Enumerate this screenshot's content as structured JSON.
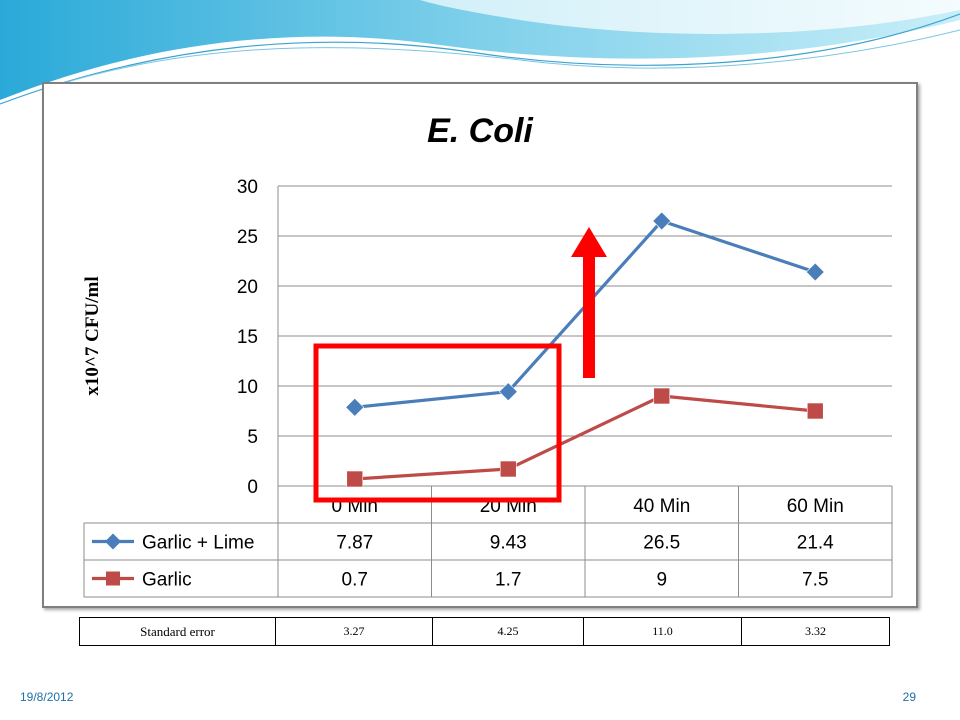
{
  "chart_data": {
    "type": "line",
    "title": "E. Coli",
    "ylabel": "x10^7 CFU/ml",
    "xlabel": "",
    "categories": [
      "0 Min",
      "20 Min",
      "40 Min",
      "60 Min"
    ],
    "ylim": [
      0,
      30
    ],
    "yticks": [
      0,
      5,
      10,
      15,
      20,
      25,
      30
    ],
    "grid": true,
    "legend": "data-table",
    "series": [
      {
        "name": "Garlic + Lime",
        "values": [
          7.87,
          9.43,
          26.5,
          21.4
        ],
        "labels": [
          "7.87",
          "9.43",
          "26.5",
          "21.4"
        ],
        "color": "#4a7ebb",
        "marker": "diamond"
      },
      {
        "name": "Garlic",
        "values": [
          0.7,
          1.7,
          9,
          7.5
        ],
        "labels": [
          "0.7",
          "1.7",
          "9",
          "7.5"
        ],
        "color": "#be4b48",
        "marker": "square"
      }
    ],
    "annotations": [
      {
        "type": "highlight-box",
        "categories": [
          "0 Min",
          "20 Min"
        ],
        "color": "#ff0000"
      },
      {
        "type": "arrow-up",
        "category": "40 Min",
        "from": 9,
        "to": 26.5,
        "color": "#ff0000"
      }
    ]
  },
  "standard_error": {
    "label": "Standard error",
    "values": [
      "3.27",
      "4.25",
      "11.0",
      "3.32"
    ]
  },
  "footer": {
    "date": "19/8/2012",
    "page": "29"
  },
  "colors": {
    "accent": "#1f6fa8",
    "grid": "#8c8c8c"
  }
}
